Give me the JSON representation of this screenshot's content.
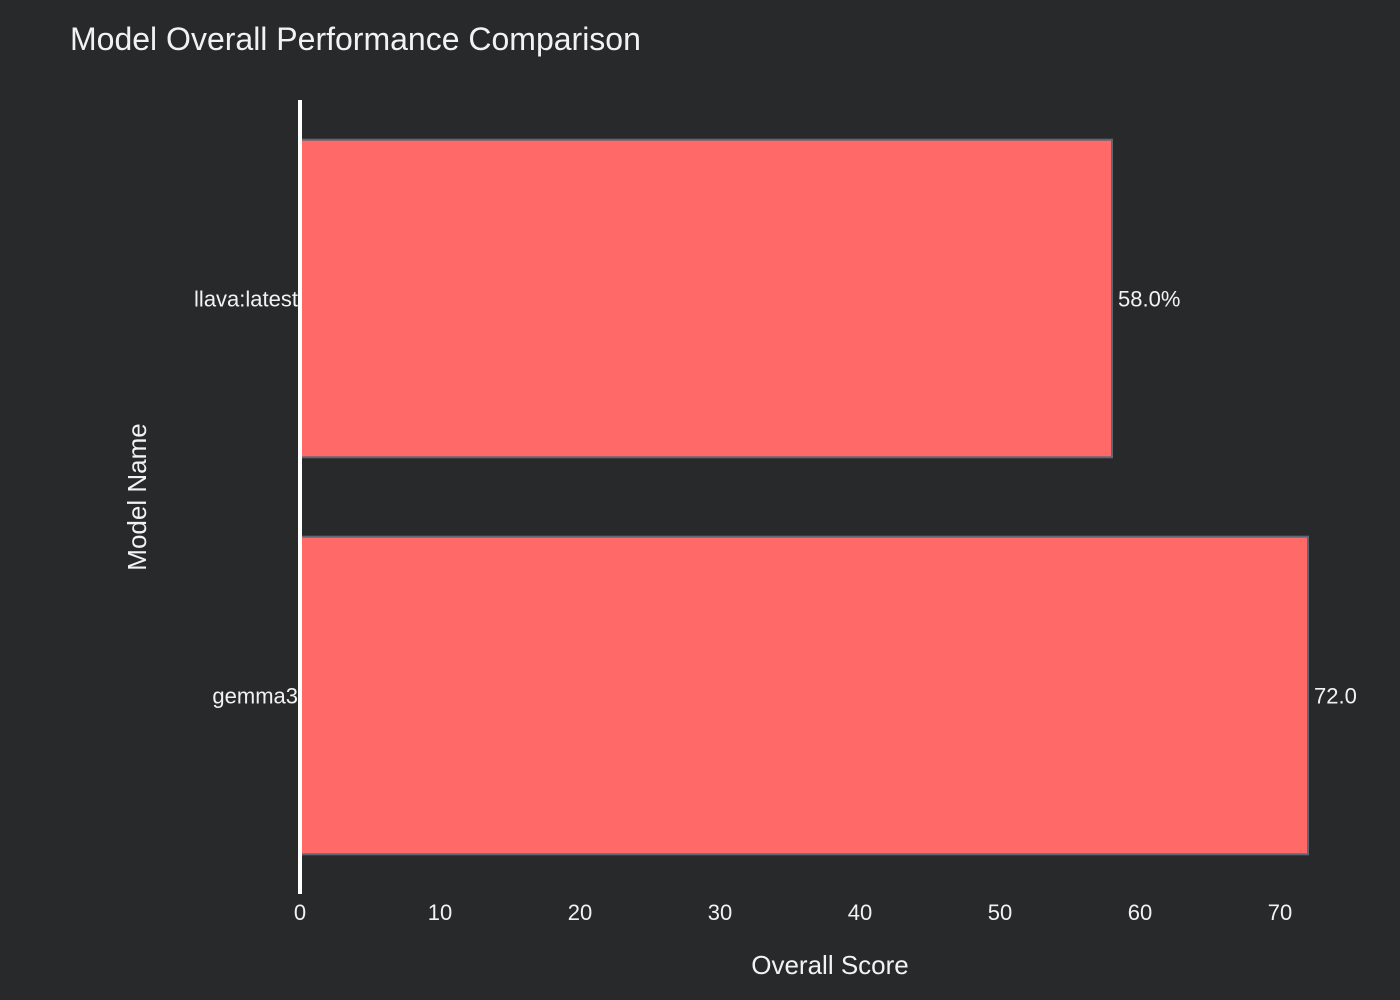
{
  "chart_data": {
    "type": "bar",
    "orientation": "horizontal",
    "title": "Model Overall Performance Comparison",
    "xlabel": "Overall Score",
    "ylabel": "Model Name",
    "categories": [
      "llava:latest",
      "gemma3"
    ],
    "values": [
      58.0,
      72.0
    ],
    "data_labels": [
      "58.0%",
      "72.0"
    ],
    "xlim": [
      0,
      72
    ],
    "x_ticks": [
      0,
      10,
      20,
      30,
      40,
      50,
      60,
      70
    ],
    "grid": false,
    "legend": "none",
    "colors": {
      "background": "#28292b",
      "bar_fill": "#ff6a69",
      "bar_stroke": "#5f6673",
      "axis_line": "#ffffff",
      "text": "#f2f2f2"
    }
  }
}
